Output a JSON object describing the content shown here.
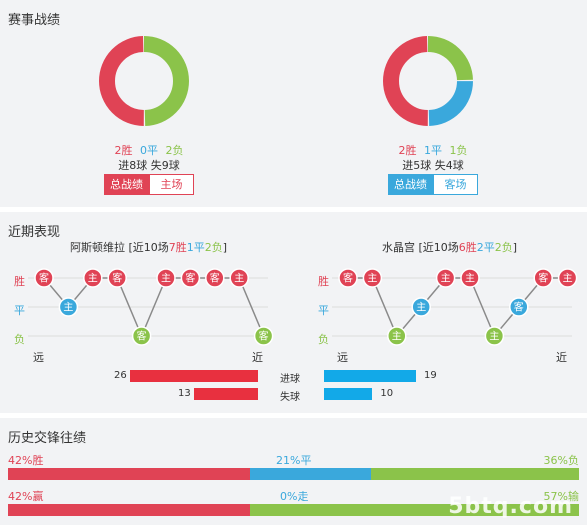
{
  "colors": {
    "win": "#e04355",
    "draw": "#3aa8dc",
    "loss": "#8bc34a",
    "gray": "#c8c8c8"
  },
  "section1": {
    "title": "赛事战绩",
    "left": {
      "chart": {
        "win": 2,
        "draw": 0,
        "loss": 2
      },
      "win_text": "2胜",
      "draw_text": "0平",
      "loss_text": "2负",
      "goals_text": "进8球 失9球",
      "tab_all": "总战绩",
      "tab_venue": "主场",
      "accent": "#e04355"
    },
    "right": {
      "chart": {
        "win": 2,
        "draw": 1,
        "loss": 1
      },
      "win_text": "2胜",
      "draw_text": "1平",
      "loss_text": "1负",
      "goals_text": "进5球 失4球",
      "tab_all": "总战绩",
      "tab_venue": "客场",
      "accent": "#3aa8dc"
    }
  },
  "section2": {
    "title": "近期表现",
    "labels": {
      "win": "胜",
      "draw": "平",
      "loss": "负",
      "far": "远",
      "near": "近"
    },
    "left": {
      "team": "阿斯顿维拉",
      "summary_prefix": "[近10场",
      "win": "7胜",
      "draw": "1平",
      "loss": "2负",
      "summary_suffix": "]",
      "form": [
        {
          "r": "W",
          "v": "客"
        },
        {
          "r": "D",
          "v": "主"
        },
        {
          "r": "W",
          "v": "主"
        },
        {
          "r": "W",
          "v": "客"
        },
        {
          "r": "L",
          "v": "客"
        },
        {
          "r": "W",
          "v": "主"
        },
        {
          "r": "W",
          "v": "客"
        },
        {
          "r": "W",
          "v": "客"
        },
        {
          "r": "W",
          "v": "主"
        },
        {
          "r": "L",
          "v": "客"
        }
      ]
    },
    "right": {
      "team": "水晶宫",
      "summary_prefix": "[近10场",
      "win": "6胜",
      "draw": "2平",
      "loss": "2负",
      "summary_suffix": "]",
      "form": [
        {
          "r": "W",
          "v": "客"
        },
        {
          "r": "W",
          "v": "主"
        },
        {
          "r": "L",
          "v": "主"
        },
        {
          "r": "D",
          "v": "主"
        },
        {
          "r": "W",
          "v": "主"
        },
        {
          "r": "W",
          "v": "主"
        },
        {
          "r": "L",
          "v": "主"
        },
        {
          "r": "D",
          "v": "客"
        },
        {
          "r": "W",
          "v": "客"
        },
        {
          "r": "W",
          "v": "主"
        }
      ]
    },
    "goals_for": {
      "label": "进球",
      "home": 26,
      "away": 19
    },
    "goals_against": {
      "label": "失球",
      "home": 13,
      "away": 10
    }
  },
  "section3": {
    "title": "历史交锋往绩",
    "row1": {
      "left": "42%胜",
      "mid": "21%平",
      "right": "36%负",
      "values": [
        42,
        21,
        36
      ]
    },
    "row2": {
      "left": "42%赢",
      "mid": "0%走",
      "right": "57%输",
      "values": [
        42,
        0,
        57
      ]
    }
  },
  "watermark": "5btq.com"
}
